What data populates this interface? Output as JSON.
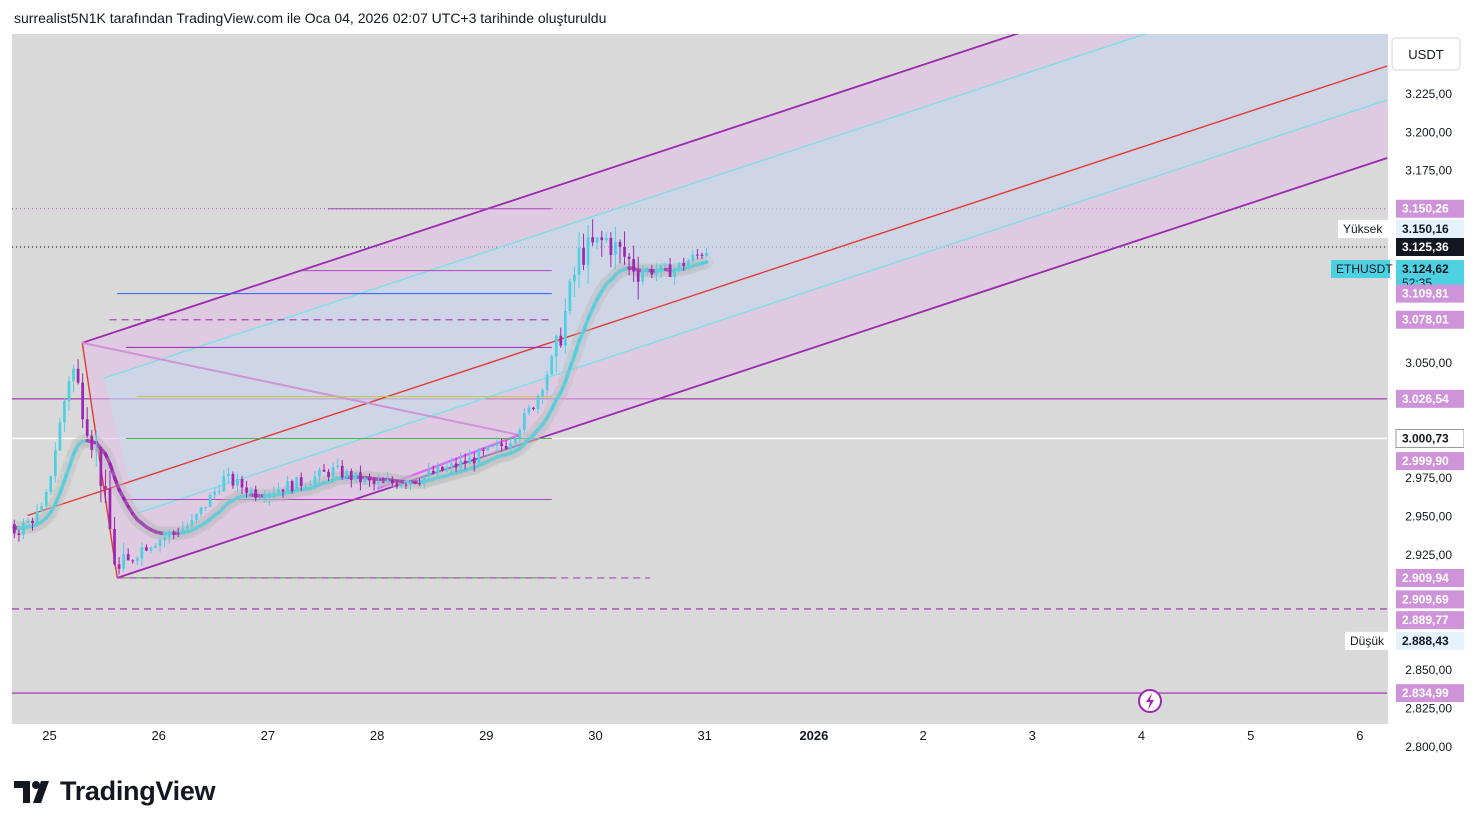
{
  "header": {
    "caption": "surrealist5N1K tarafından TradingView.com ile Oca 04, 2026 02:07 UTC+3 tarihinde oluşturuldu"
  },
  "chart_data": {
    "type": "candlestick",
    "symbol": "ETHUSDT",
    "currency": "USDT",
    "y_ticks": [
      "3.225,00",
      "3.200,00",
      "3.175,00",
      "3.050,00",
      "2.975,00",
      "2.950,00",
      "2.925,00",
      "2.850,00",
      "2.825,00",
      "2.800,00"
    ],
    "y_tick_values": [
      3225,
      3200,
      3175,
      3050,
      2975,
      2950,
      2925,
      2850,
      2825,
      2800
    ],
    "ylim": [
      2796,
      3264
    ],
    "x_ticks": [
      "25",
      "26",
      "27",
      "28",
      "29",
      "30",
      "31",
      "2026",
      "2",
      "3",
      "4",
      "5",
      "6"
    ],
    "x_bold": "2026",
    "price_labels": [
      {
        "text": "3.150,26",
        "value": 3150.26,
        "style": "purple"
      },
      {
        "text": "3.150,16",
        "value": 3137.0,
        "style": "light",
        "tag": "Yüksek"
      },
      {
        "text": "3.125,36",
        "value": 3125.36,
        "style": "dark"
      },
      {
        "text": "3.124,62",
        "value": 3111.0,
        "style": "cyan",
        "sub": "52:35",
        "tag": "ETHUSDT"
      },
      {
        "text": "3.109,81",
        "value": 3095.0,
        "style": "purple"
      },
      {
        "text": "3.078,01",
        "value": 3078.01,
        "style": "purple"
      },
      {
        "text": "3.026,54",
        "value": 3026.54,
        "style": "purple"
      },
      {
        "text": "3.000,73",
        "value": 3000.73,
        "style": "white"
      },
      {
        "text": "2.999,90",
        "value": 2986.0,
        "style": "purple"
      },
      {
        "text": "2.909,94",
        "value": 2909.94,
        "style": "purple"
      },
      {
        "text": "2.909,69",
        "value": 2896.0,
        "style": "purple"
      },
      {
        "text": "2.889,77",
        "value": 2882.5,
        "style": "purple"
      },
      {
        "text": "2.888,43",
        "value": 2869.0,
        "style": "light",
        "tag": "Düşük"
      },
      {
        "text": "2.834,99",
        "value": 2834.99,
        "style": "purple"
      }
    ],
    "horizontal_levels": [
      {
        "value": 3150.26,
        "color": "#ab47bc",
        "kind": "dotted-full"
      },
      {
        "value": 3125.36,
        "color": "#000000",
        "kind": "dotted-full"
      },
      {
        "value": 3026.54,
        "color": "#ab47bc",
        "kind": "solid-full"
      },
      {
        "value": 3000.73,
        "color": "#ffffff",
        "kind": "solid-full"
      },
      {
        "value": 2889.77,
        "color": "#ab47bc",
        "kind": "dashed-full"
      },
      {
        "value": 2834.99,
        "color": "#ab47bc",
        "kind": "solid-full"
      },
      {
        "value": 3150.26,
        "color": "#ab47bc",
        "kind": "segment",
        "from": 2.55,
        "to": 4.6
      },
      {
        "value": 3110.0,
        "color": "#ab47bc",
        "kind": "segment",
        "from": 2.3,
        "to": 4.6
      },
      {
        "value": 3095.0,
        "color": "#2962ff",
        "kind": "segment",
        "from": 0.62,
        "to": 4.6
      },
      {
        "value": 3078.01,
        "color": "#ab47bc",
        "kind": "dashed-segment",
        "from": 0.55,
        "to": 4.6
      },
      {
        "value": 3060.0,
        "color": "#9c27b0",
        "kind": "segment",
        "from": 0.7,
        "to": 4.6
      },
      {
        "value": 3028.0,
        "color": "#c0ca33",
        "kind": "segment",
        "from": 0.8,
        "to": 4.6
      },
      {
        "value": 3000.73,
        "color": "#4caf50",
        "kind": "segment",
        "from": 0.7,
        "to": 4.6
      },
      {
        "value": 2961.0,
        "color": "#ab47bc",
        "kind": "segment",
        "from": 0.7,
        "to": 4.6
      },
      {
        "value": 2910.0,
        "color": "#43a047",
        "kind": "segment",
        "from": 0.62,
        "to": 4.6
      },
      {
        "value": 2909.94,
        "color": "#ab47bc",
        "kind": "dashed-segment",
        "from": 0.62,
        "to": 5.5
      }
    ],
    "candles_day0_open": 2955,
    "colors": {
      "up": "#4dd0e1",
      "down": "#9c27b0",
      "ma_up": "#4dd0e1",
      "ma_down": "#9c27b0",
      "channel_fill": "#e1bee7",
      "channel_edge": "#9c27b0",
      "inner_channel": "#80deea",
      "median": "#e53935"
    }
  },
  "footer": {
    "brand": "TradingView"
  }
}
